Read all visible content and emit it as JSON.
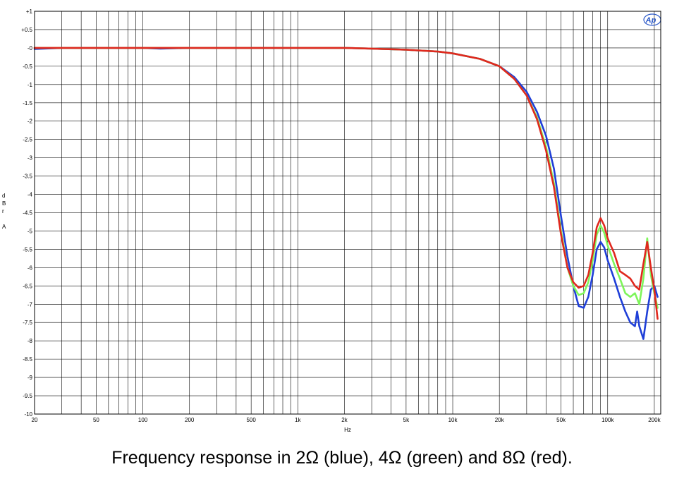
{
  "chart_data": {
    "type": "line",
    "title": "",
    "xlabel": "Hz",
    "ylabel": [
      "d",
      "B",
      "r",
      "",
      "A"
    ],
    "xscale": "log",
    "xlim": [
      20,
      220000
    ],
    "ylim": [
      -10,
      1
    ],
    "grid": true,
    "x_tick_labels": [
      {
        "v": 20,
        "t": "20"
      },
      {
        "v": 50,
        "t": "50"
      },
      {
        "v": 100,
        "t": "100"
      },
      {
        "v": 200,
        "t": "200"
      },
      {
        "v": 500,
        "t": "500"
      },
      {
        "v": 1000,
        "t": "1k"
      },
      {
        "v": 2000,
        "t": "2k"
      },
      {
        "v": 5000,
        "t": "5k"
      },
      {
        "v": 10000,
        "t": "10k"
      },
      {
        "v": 20000,
        "t": "20k"
      },
      {
        "v": 50000,
        "t": "50k"
      },
      {
        "v": 100000,
        "t": "100k"
      },
      {
        "v": 200000,
        "t": "200k"
      }
    ],
    "y_tick_labels": [
      {
        "v": 1,
        "t": "+1"
      },
      {
        "v": 0.5,
        "t": "+0.5"
      },
      {
        "v": 0,
        "t": "-0"
      },
      {
        "v": -0.5,
        "t": "-0.5"
      },
      {
        "v": -1,
        "t": "-1"
      },
      {
        "v": -1.5,
        "t": "-1.5"
      },
      {
        "v": -2,
        "t": "-2"
      },
      {
        "v": -2.5,
        "t": "-2.5"
      },
      {
        "v": -3,
        "t": "-3"
      },
      {
        "v": -3.5,
        "t": "-3.5"
      },
      {
        "v": -4,
        "t": "-4"
      },
      {
        "v": -4.5,
        "t": "-4.5"
      },
      {
        "v": -5,
        "t": "-5"
      },
      {
        "v": -5.5,
        "t": "-5.5"
      },
      {
        "v": -6,
        "t": "-6"
      },
      {
        "v": -6.5,
        "t": "-6.5"
      },
      {
        "v": -7,
        "t": "-7"
      },
      {
        "v": -7.5,
        "t": "-7.5"
      },
      {
        "v": -8,
        "t": "-8"
      },
      {
        "v": -8.5,
        "t": "-8.5"
      },
      {
        "v": -9,
        "t": "-9"
      },
      {
        "v": -9.5,
        "t": "-9.5"
      },
      {
        "v": -10,
        "t": "-10"
      }
    ],
    "series": [
      {
        "color": "#1f3fd8",
        "points": [
          [
            20,
            -0.03
          ],
          [
            30,
            0.0
          ],
          [
            100,
            0.0
          ],
          [
            130,
            -0.02
          ],
          [
            200,
            0.0
          ],
          [
            2000,
            0.0
          ],
          [
            3000,
            -0.02
          ],
          [
            5000,
            -0.05
          ],
          [
            8000,
            -0.1
          ],
          [
            10000,
            -0.15
          ],
          [
            15000,
            -0.3
          ],
          [
            20000,
            -0.5
          ],
          [
            25000,
            -0.8
          ],
          [
            30000,
            -1.2
          ],
          [
            35000,
            -1.75
          ],
          [
            40000,
            -2.4
          ],
          [
            45000,
            -3.3
          ],
          [
            50000,
            -4.6
          ],
          [
            55000,
            -5.7
          ],
          [
            60000,
            -6.5
          ],
          [
            65000,
            -7.05
          ],
          [
            70000,
            -7.1
          ],
          [
            75000,
            -6.8
          ],
          [
            80000,
            -6.2
          ],
          [
            85000,
            -5.5
          ],
          [
            90000,
            -5.3
          ],
          [
            95000,
            -5.45
          ],
          [
            100000,
            -5.8
          ],
          [
            110000,
            -6.3
          ],
          [
            120000,
            -6.8
          ],
          [
            130000,
            -7.2
          ],
          [
            140000,
            -7.5
          ],
          [
            150000,
            -7.6
          ],
          [
            155000,
            -7.2
          ],
          [
            160000,
            -7.6
          ],
          [
            170000,
            -7.95
          ],
          [
            180000,
            -7.2
          ],
          [
            190000,
            -6.6
          ],
          [
            200000,
            -6.5
          ],
          [
            210000,
            -6.8
          ]
        ]
      },
      {
        "color": "#7ef55a",
        "points": [
          [
            20,
            0.0
          ],
          [
            30,
            0.0
          ],
          [
            200,
            0.0
          ],
          [
            2000,
            0.0
          ],
          [
            3000,
            -0.02
          ],
          [
            5000,
            -0.05
          ],
          [
            8000,
            -0.1
          ],
          [
            10000,
            -0.15
          ],
          [
            15000,
            -0.3
          ],
          [
            20000,
            -0.5
          ],
          [
            25000,
            -0.85
          ],
          [
            30000,
            -1.3
          ],
          [
            35000,
            -1.9
          ],
          [
            40000,
            -2.7
          ],
          [
            45000,
            -3.7
          ],
          [
            50000,
            -5.0
          ],
          [
            55000,
            -6.0
          ],
          [
            60000,
            -6.5
          ],
          [
            65000,
            -6.75
          ],
          [
            70000,
            -6.7
          ],
          [
            75000,
            -6.4
          ],
          [
            80000,
            -5.8
          ],
          [
            85000,
            -5.1
          ],
          [
            90000,
            -4.85
          ],
          [
            95000,
            -5.05
          ],
          [
            100000,
            -5.4
          ],
          [
            110000,
            -5.9
          ],
          [
            120000,
            -6.3
          ],
          [
            130000,
            -6.7
          ],
          [
            140000,
            -6.8
          ],
          [
            150000,
            -6.7
          ],
          [
            160000,
            -7.0
          ],
          [
            170000,
            -6.3
          ],
          [
            180000,
            -5.2
          ],
          [
            190000,
            -6.2
          ],
          [
            200000,
            -6.7
          ],
          [
            210000,
            -7.1
          ]
        ]
      },
      {
        "color": "#e0281e",
        "points": [
          [
            20,
            0.0
          ],
          [
            30,
            0.0
          ],
          [
            200,
            0.0
          ],
          [
            2000,
            0.0
          ],
          [
            3000,
            -0.02
          ],
          [
            5000,
            -0.05
          ],
          [
            8000,
            -0.1
          ],
          [
            10000,
            -0.15
          ],
          [
            15000,
            -0.3
          ],
          [
            20000,
            -0.5
          ],
          [
            25000,
            -0.85
          ],
          [
            30000,
            -1.3
          ],
          [
            35000,
            -1.95
          ],
          [
            40000,
            -2.8
          ],
          [
            45000,
            -3.8
          ],
          [
            50000,
            -5.1
          ],
          [
            55000,
            -6.0
          ],
          [
            60000,
            -6.4
          ],
          [
            65000,
            -6.55
          ],
          [
            70000,
            -6.5
          ],
          [
            75000,
            -6.2
          ],
          [
            80000,
            -5.6
          ],
          [
            85000,
            -4.9
          ],
          [
            90000,
            -4.65
          ],
          [
            95000,
            -4.85
          ],
          [
            100000,
            -5.2
          ],
          [
            110000,
            -5.6
          ],
          [
            120000,
            -6.1
          ],
          [
            130000,
            -6.2
          ],
          [
            140000,
            -6.3
          ],
          [
            150000,
            -6.5
          ],
          [
            160000,
            -6.6
          ],
          [
            170000,
            -5.9
          ],
          [
            180000,
            -5.3
          ],
          [
            190000,
            -6.0
          ],
          [
            200000,
            -6.6
          ],
          [
            210000,
            -7.4
          ]
        ]
      }
    ]
  },
  "logo_text": "Ap",
  "caption": "Frequency response in 2Ω (blue), 4Ω (green) and 8Ω (red)."
}
